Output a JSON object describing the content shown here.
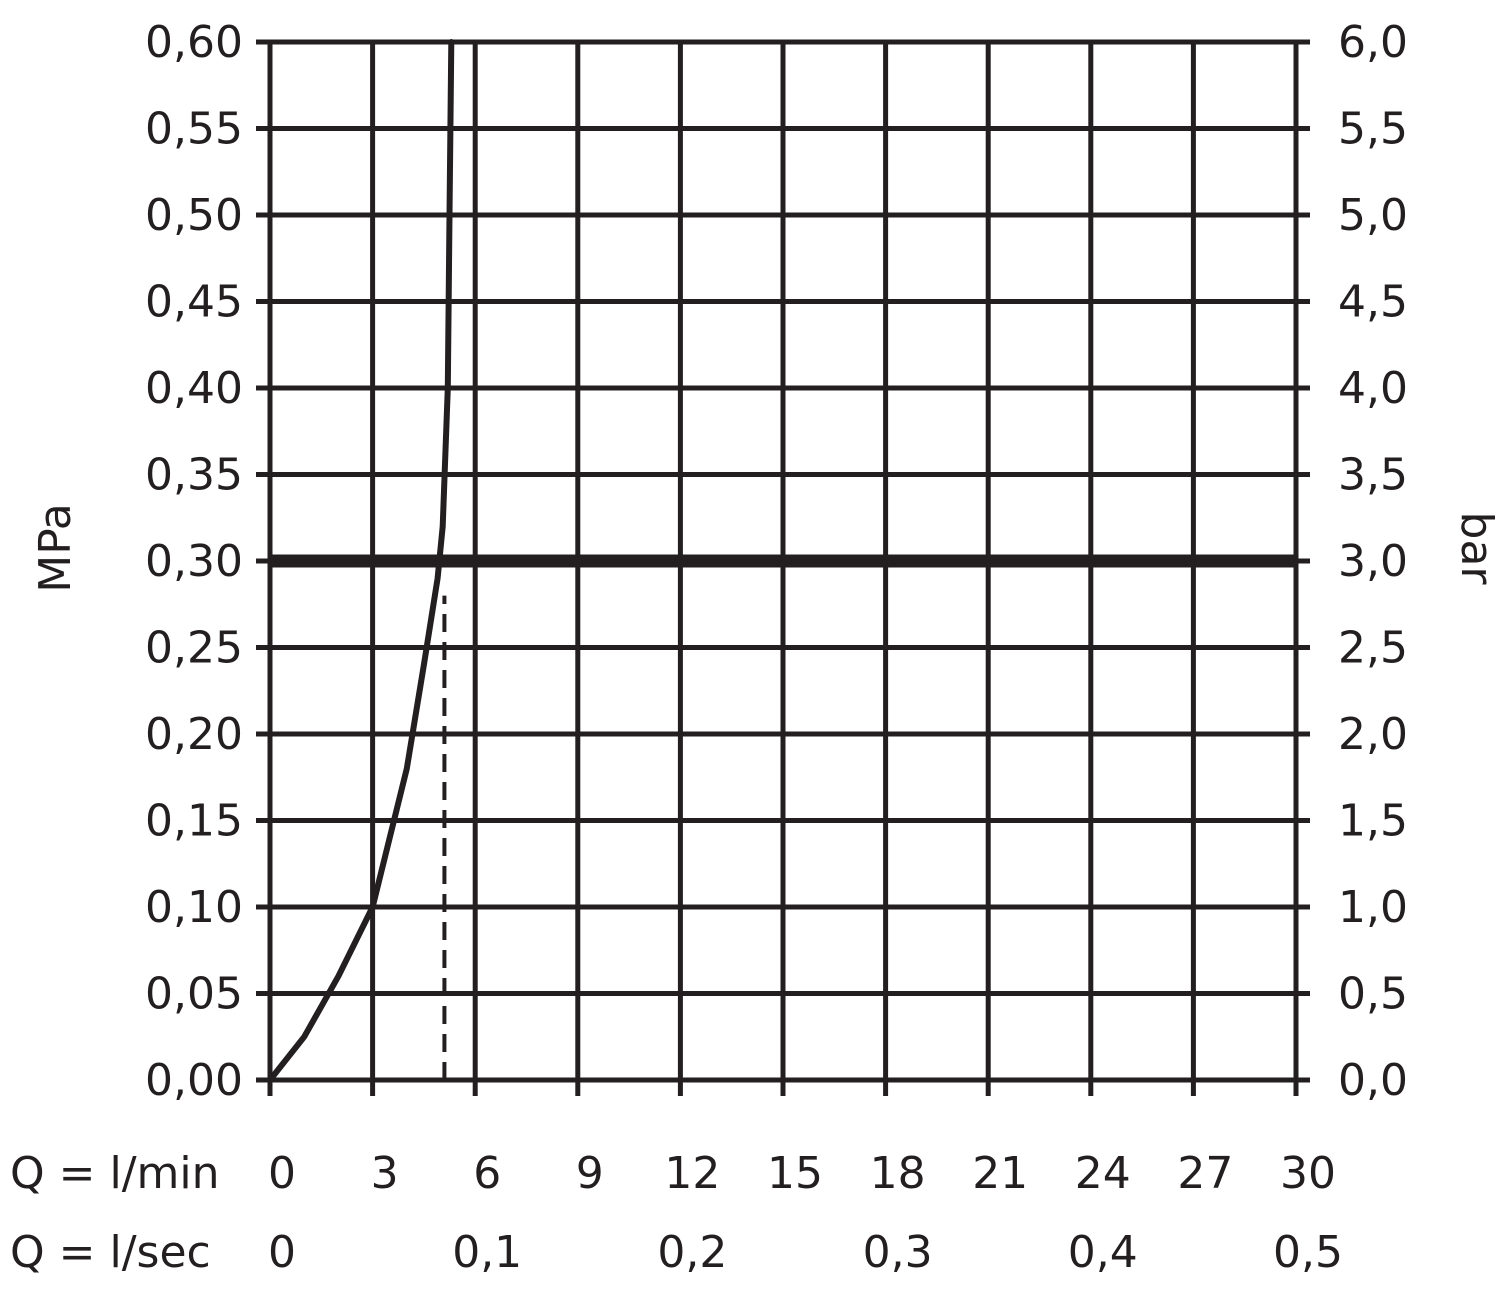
{
  "chart_data": {
    "type": "line",
    "left_axis": {
      "label": "MPa",
      "ticks": [
        "0,00",
        "0,05",
        "0,10",
        "0,15",
        "0,20",
        "0,25",
        "0,30",
        "0,35",
        "0,40",
        "0,45",
        "0,50",
        "0,55",
        "0,60"
      ],
      "range": [
        0,
        0.6
      ]
    },
    "right_axis": {
      "label": "bar",
      "ticks": [
        "0,0",
        "0,5",
        "1,0",
        "1,5",
        "2,0",
        "2,5",
        "3,0",
        "3,5",
        "4,0",
        "4,5",
        "5,0",
        "5,5",
        "6,0"
      ],
      "range": [
        0,
        6
      ]
    },
    "x_axis_primary": {
      "label": "Q = l/min",
      "ticks": [
        "0",
        "3",
        "6",
        "9",
        "12",
        "15",
        "18",
        "21",
        "24",
        "27",
        "30"
      ],
      "range": [
        0,
        30
      ]
    },
    "x_axis_secondary": {
      "label": "Q = l/sec",
      "ticks": [
        "0",
        "0,1",
        "0,2",
        "0,3",
        "0,4",
        "0,5"
      ],
      "range": [
        0,
        0.5
      ]
    },
    "grid": true,
    "series": [
      {
        "style": "solid",
        "x": [
          0,
          1,
          2,
          3,
          4,
          4.5,
          4.9,
          5.05,
          5.2,
          5.25,
          5.3
        ],
        "y": [
          0,
          0.025,
          0.06,
          0.1,
          0.18,
          0.24,
          0.29,
          0.32,
          0.4,
          0.5,
          0.6
        ]
      }
    ],
    "reference_lines": [
      {
        "orientation": "horizontal",
        "y": 0.3,
        "style": "thick"
      },
      {
        "orientation": "vertical",
        "x": 5.1,
        "y_range": [
          0,
          0.28
        ],
        "style": "dashed"
      }
    ]
  }
}
